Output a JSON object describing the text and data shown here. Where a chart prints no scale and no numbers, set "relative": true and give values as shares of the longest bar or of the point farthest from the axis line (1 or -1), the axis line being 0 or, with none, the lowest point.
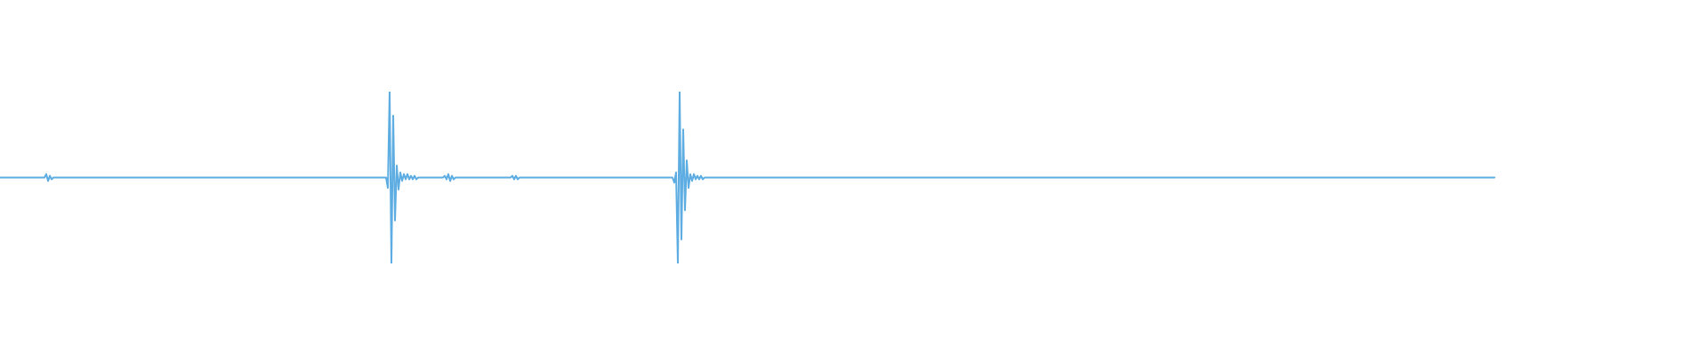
{
  "chart_data": {
    "type": "line",
    "relative": true,
    "categories": [
      null,
      null,
      null,
      null,
      null,
      null,
      null,
      null,
      null,
      null,
      null,
      null,
      null,
      null,
      null,
      null,
      null,
      null,
      null,
      null,
      null,
      null,
      null,
      null,
      null,
      null,
      null,
      null,
      null,
      null,
      null,
      null,
      null,
      null,
      null,
      null,
      null,
      null,
      null,
      null,
      null,
      null,
      null,
      null,
      null,
      null,
      null,
      null,
      null,
      null,
      null,
      null,
      null,
      null,
      null,
      null,
      null,
      null,
      null,
      null,
      null,
      null,
      null,
      null,
      null,
      null,
      null,
      null,
      null,
      null,
      null,
      null,
      null,
      null,
      null,
      null,
      null,
      null,
      null,
      null,
      null,
      null,
      null,
      null,
      null,
      null,
      null,
      null,
      null,
      null,
      null,
      null,
      null,
      null,
      null,
      null,
      null,
      null,
      null,
      null,
      null,
      null,
      null,
      null,
      null,
      null,
      null,
      null,
      null,
      null,
      null,
      null,
      null,
      null,
      null,
      null,
      null,
      null,
      null,
      null,
      null,
      null,
      null,
      null,
      null,
      null,
      null,
      null,
      null,
      null,
      null,
      null,
      null,
      null,
      null,
      null,
      null,
      null,
      null,
      null,
      null,
      null,
      null,
      null,
      null,
      null,
      null,
      null,
      null,
      null,
      null,
      null,
      null,
      null,
      null,
      null,
      null,
      null,
      null,
      null,
      null,
      null,
      null,
      null,
      null,
      null,
      null,
      null,
      null,
      null,
      null,
      null,
      null,
      null,
      null,
      null,
      null,
      null,
      null,
      null,
      null,
      null,
      null,
      null,
      null,
      null,
      null,
      null,
      null,
      null,
      null,
      null,
      null,
      null,
      null,
      null,
      null,
      null,
      null,
      null,
      null,
      null,
      null,
      null,
      null,
      null,
      null,
      null,
      null,
      null,
      null,
      null,
      null,
      null,
      null,
      null,
      null,
      null,
      null,
      null,
      null,
      null,
      null,
      null,
      null,
      null,
      null,
      null,
      null,
      null,
      null,
      null,
      null,
      null,
      null,
      null,
      null,
      null,
      null,
      null,
      null,
      null,
      null,
      null,
      null,
      null,
      null,
      null,
      null,
      null,
      null,
      null,
      null,
      null,
      null,
      null,
      null,
      null,
      null,
      null,
      null,
      null,
      null,
      null,
      null,
      null,
      null,
      null,
      null,
      null,
      null,
      null,
      null,
      null,
      null,
      null,
      null,
      null,
      null,
      null,
      null,
      null,
      null,
      null,
      null,
      null,
      null,
      null,
      null,
      null,
      null,
      null,
      null,
      null,
      null,
      null,
      null,
      null,
      null,
      null,
      null,
      null,
      null,
      null,
      null,
      null,
      null,
      null,
      null,
      null,
      null,
      null,
      null,
      null,
      null,
      null,
      null,
      null,
      null,
      null,
      null,
      null,
      null,
      null,
      null,
      null,
      null,
      null,
      null,
      null,
      null,
      null,
      null,
      null,
      null,
      null,
      null,
      null,
      null,
      null,
      null,
      null,
      null,
      null,
      null,
      null,
      null,
      null,
      null,
      null,
      null,
      null,
      null,
      null,
      null,
      null,
      null,
      null,
      null,
      null,
      null,
      null,
      null,
      null,
      null,
      null,
      null,
      null,
      null,
      null,
      null,
      null,
      null,
      null,
      null,
      null,
      null,
      null,
      null,
      null,
      null,
      null,
      null,
      null,
      null,
      null,
      null,
      null,
      null,
      null,
      null,
      null,
      null,
      null,
      null,
      null,
      null,
      null,
      null,
      null,
      null,
      null,
      null,
      null,
      null,
      null,
      null,
      null,
      null,
      null,
      null,
      null,
      null,
      null,
      null,
      null,
      null,
      null,
      null,
      null,
      null,
      null,
      null,
      null,
      null,
      null,
      null,
      null,
      null,
      null,
      null,
      null,
      null,
      null,
      null,
      null,
      null,
      null,
      null,
      null,
      null,
      null,
      null,
      null,
      null,
      null,
      null,
      null,
      null,
      null,
      null,
      null,
      null,
      null,
      null,
      null,
      null,
      null,
      null,
      null,
      null,
      null,
      null,
      null,
      null,
      null,
      null,
      null,
      null,
      null,
      null,
      null,
      null,
      null,
      null,
      null,
      null,
      null,
      null,
      null,
      null,
      null,
      null,
      null,
      null,
      null,
      null,
      null,
      null,
      null,
      null,
      null,
      null,
      null,
      null,
      null,
      null,
      null,
      null,
      null,
      null,
      null,
      null,
      null,
      null,
      null,
      null,
      null,
      null,
      null,
      null,
      null,
      null,
      null,
      null,
      null,
      null,
      null,
      null,
      null,
      null,
      null,
      null,
      null,
      null,
      null,
      null,
      null,
      null,
      null,
      null,
      null,
      null,
      null,
      null,
      null,
      null,
      null,
      null,
      null,
      null,
      null,
      null,
      null,
      null,
      null,
      null,
      null,
      null,
      null,
      null,
      null,
      null,
      null,
      null,
      null,
      null,
      null,
      null,
      null,
      null,
      null,
      null,
      null,
      null,
      null,
      null,
      null,
      null,
      null,
      null,
      null,
      null,
      null,
      null,
      null,
      null,
      null,
      null,
      null,
      null,
      null,
      null,
      null,
      null,
      null,
      null,
      null,
      null,
      null,
      null,
      null,
      null,
      null,
      null,
      null,
      null,
      null,
      null,
      null,
      null,
      null,
      null,
      null,
      null,
      null,
      null,
      null,
      null,
      null,
      null,
      null,
      null,
      null,
      null,
      null,
      null,
      null,
      null,
      null,
      null,
      null,
      null,
      null,
      null,
      null,
      null,
      null,
      null,
      null,
      null,
      null,
      null,
      null,
      null,
      null,
      null,
      null,
      null,
      null,
      null,
      null,
      null,
      null,
      null,
      null,
      null,
      null,
      null,
      null,
      null,
      null,
      null,
      null,
      null,
      null,
      null,
      null,
      null,
      null,
      null,
      null,
      null,
      null,
      null,
      null,
      null,
      null,
      null,
      null,
      null,
      null,
      null,
      null,
      null,
      null,
      null,
      null,
      null,
      null,
      null,
      null,
      null,
      null,
      null,
      null,
      null,
      null,
      null,
      null,
      null,
      null,
      null,
      null,
      null,
      null,
      null,
      null,
      null,
      null,
      null,
      null,
      null,
      null,
      null,
      null,
      null,
      null,
      null,
      null,
      null,
      null,
      null,
      null,
      null,
      null,
      null,
      null,
      null,
      null,
      null,
      null,
      null,
      null,
      null,
      null,
      null,
      null,
      null,
      null,
      null,
      null,
      null,
      null,
      null,
      null,
      null,
      null,
      null,
      null,
      null,
      null,
      null,
      null,
      null,
      null,
      null,
      null,
      null,
      null,
      null,
      null,
      null,
      null,
      null,
      null,
      null,
      null,
      null,
      null,
      null,
      null,
      null,
      null,
      null,
      null,
      null,
      null,
      null,
      null,
      null,
      null,
      null,
      null,
      null,
      null,
      null,
      null,
      null,
      null,
      null,
      null,
      null,
      null,
      null,
      null,
      null,
      null,
      null,
      null,
      null,
      null,
      null,
      null,
      null,
      null,
      null,
      null,
      null,
      null,
      null,
      null,
      null,
      null,
      null,
      null,
      null,
      null,
      null,
      null,
      null,
      null,
      null,
      null,
      null,
      null,
      null,
      null,
      null,
      null,
      null,
      null,
      null,
      null,
      null,
      null,
      null,
      null,
      null,
      null,
      null,
      null,
      null,
      null,
      null,
      null,
      null,
      null,
      null,
      null,
      null
    ],
    "series": [
      {
        "color": "#5dade2",
        "values": [
          0.5,
          0.5,
          0.5,
          0.5,
          0.5,
          0.5,
          0.5,
          0.5,
          0.5,
          0.5,
          0.5,
          0.5,
          0.5,
          0.5,
          0.5,
          0.5,
          0.5,
          0.5,
          0.5,
          0.5,
          0.5,
          0.5,
          0.5,
          0.5,
          0.5,
          0.5,
          0.52,
          0.48,
          0.51,
          0.49,
          0.5,
          0.5,
          0.5,
          0.5,
          0.5,
          0.5,
          0.5,
          0.5,
          0.5,
          0.5,
          0.5,
          0.5,
          0.5,
          0.5,
          0.5,
          0.5,
          0.5,
          0.5,
          0.5,
          0.5,
          0.5,
          0.5,
          0.5,
          0.5,
          0.5,
          0.5,
          0.5,
          0.5,
          0.5,
          0.5,
          0.5,
          0.5,
          0.5,
          0.5,
          0.5,
          0.5,
          0.5,
          0.5,
          0.5,
          0.5,
          0.5,
          0.5,
          0.5,
          0.5,
          0.5,
          0.5,
          0.5,
          0.5,
          0.5,
          0.5,
          0.5,
          0.5,
          0.5,
          0.5,
          0.5,
          0.5,
          0.5,
          0.5,
          0.5,
          0.5,
          0.5,
          0.5,
          0.5,
          0.5,
          0.5,
          0.5,
          0.5,
          0.5,
          0.5,
          0.5,
          0.5,
          0.5,
          0.5,
          0.5,
          0.5,
          0.5,
          0.5,
          0.5,
          0.5,
          0.5,
          0.5,
          0.5,
          0.5,
          0.5,
          0.5,
          0.5,
          0.5,
          0.5,
          0.5,
          0.5,
          0.5,
          0.5,
          0.5,
          0.5,
          0.5,
          0.5,
          0.5,
          0.5,
          0.5,
          0.5,
          0.5,
          0.5,
          0.5,
          0.5,
          0.5,
          0.5,
          0.5,
          0.5,
          0.5,
          0.5,
          0.5,
          0.5,
          0.5,
          0.5,
          0.5,
          0.5,
          0.5,
          0.5,
          0.5,
          0.5,
          0.5,
          0.5,
          0.5,
          0.5,
          0.5,
          0.5,
          0.5,
          0.5,
          0.5,
          0.5,
          0.5,
          0.5,
          0.5,
          0.5,
          0.5,
          0.5,
          0.5,
          0.5,
          0.5,
          0.5,
          0.5,
          0.5,
          0.5,
          0.5,
          0.5,
          0.5,
          0.5,
          0.5,
          0.5,
          0.5,
          0.5,
          0.5,
          0.5,
          0.5,
          0.5,
          0.5,
          0.5,
          0.5,
          0.5,
          0.5,
          0.5,
          0.5,
          0.5,
          0.5,
          0.5,
          0.5,
          0.5,
          0.5,
          0.5,
          0.5,
          0.5,
          0.5,
          0.5,
          0.5,
          0.5,
          0.5,
          0.5,
          0.5,
          0.5,
          0.5,
          0.5,
          0.5,
          0.5,
          0.5,
          0.5,
          0.5,
          0.5,
          0.5,
          0.44,
          1.0,
          0,
          0.86,
          0.25,
          0.57,
          0.43,
          0.53,
          0.48,
          0.52,
          0.49,
          0.52,
          0.49,
          0.51,
          0.49,
          0.51,
          0.49,
          0.5,
          0.5,
          0.5,
          0.5,
          0.5,
          0.5,
          0.5,
          0.5,
          0.5,
          0.5,
          0.5,
          0.5,
          0.5,
          0.5,
          0.5,
          0.51,
          0.49,
          0.52,
          0.48,
          0.51,
          0.49,
          0.5,
          0.5,
          0.5,
          0.5,
          0.5,
          0.5,
          0.5,
          0.5,
          0.5,
          0.5,
          0.5,
          0.5,
          0.5,
          0.5,
          0.5,
          0.5,
          0.5,
          0.5,
          0.5,
          0.5,
          0.5,
          0.5,
          0.5,
          0.5,
          0.5,
          0.5,
          0.5,
          0.5,
          0.5,
          0.5,
          0.5,
          0.5,
          0.51,
          0.49,
          0.51,
          0.49,
          0.5,
          0.5,
          0.5,
          0.5,
          0.5,
          0.5,
          0.5,
          0.5,
          0.5,
          0.5,
          0.5,
          0.5,
          0.5,
          0.5,
          0.5,
          0.5,
          0.5,
          0.5,
          0.5,
          0.5,
          0.5,
          0.5,
          0.5,
          0.5,
          0.5,
          0.5,
          0.5,
          0.5,
          0.5,
          0.5,
          0.5,
          0.5,
          0.5,
          0.5,
          0.5,
          0.5,
          0.5,
          0.5,
          0.5,
          0.5,
          0.5,
          0.5,
          0.5,
          0.5,
          0.5,
          0.5,
          0.5,
          0.5,
          0.5,
          0.5,
          0.5,
          0.5,
          0.5,
          0.5,
          0.5,
          0.5,
          0.5,
          0.5,
          0.5,
          0.5,
          0.5,
          0.5,
          0.5,
          0.5,
          0.5,
          0.5,
          0.5,
          0.5,
          0.5,
          0.5,
          0.5,
          0.5,
          0.5,
          0.5,
          0.5,
          0.5,
          0.5,
          0.5,
          0.5,
          0.5,
          0.5,
          0.5,
          0.5,
          0.5,
          0.5,
          0.5,
          0.5,
          0.47,
          0.53,
          0,
          1.0,
          0.14,
          0.78,
          0.31,
          0.6,
          0.44,
          0.52,
          0.48,
          0.52,
          0.49,
          0.51,
          0.49,
          0.51,
          0.49,
          0.5,
          0.5,
          0.5,
          0.5,
          0.5,
          0.5,
          0.5,
          0.5,
          0.5,
          0.5,
          0.5,
          0.5,
          0.5,
          0.5,
          0.5,
          0.5,
          0.5,
          0.5,
          0.5,
          0.5,
          0.5,
          0.5,
          0.5,
          0.5,
          0.5,
          0.5,
          0.5,
          0.5,
          0.5,
          0.5,
          0.5,
          0.5,
          0.5,
          0.5,
          0.5,
          0.5,
          0.5,
          0.5,
          0.5,
          0.5,
          0.5,
          0.5,
          0.5,
          0.5,
          0.5,
          0.5,
          0.5,
          0.5,
          0.5,
          0.5,
          0.5,
          0.5,
          0.5,
          0.5,
          0.5,
          0.5,
          0.5,
          0.5,
          0.5,
          0.5,
          0.5,
          0.5,
          0.5,
          0.5,
          0.5,
          0.5,
          0.5,
          0.5,
          0.5,
          0.5,
          0.5,
          0.5,
          0.5,
          0.5,
          0.5,
          0.5,
          0.5,
          0.5,
          0.5,
          0.5,
          0.5,
          0.5,
          0.5,
          0.5,
          0.5,
          0.5,
          0.5,
          0.5,
          0.5,
          0.5,
          0.5,
          0.5,
          0.5,
          0.5,
          0.5,
          0.5,
          0.5,
          0.5,
          0.5,
          0.5,
          0.5,
          0.5,
          0.5,
          0.5,
          0.5,
          0.5,
          0.5,
          0.5,
          0.5,
          0.5,
          0.5,
          0.5,
          0.5,
          0.5,
          0.5,
          0.5,
          0.5,
          0.5,
          0.5,
          0.5,
          0.5,
          0.5,
          0.5,
          0.5,
          0.5,
          0.5,
          0.5,
          0.5,
          0.5,
          0.5,
          0.5,
          0.5,
          0.5,
          0.5,
          0.5,
          0.5,
          0.5,
          0.5,
          0.5,
          0.5,
          0.5,
          0.5,
          0.5,
          0.5,
          0.5,
          0.5,
          0.5,
          0.5,
          0.5,
          0.5,
          0.5,
          0.5,
          0.5,
          0.5,
          0.5,
          0.5,
          0.5,
          0.5,
          0.5,
          0.5,
          0.5,
          0.5,
          0.5,
          0.5,
          0.5,
          0.5,
          0.5,
          0.5,
          0.5,
          0.5,
          0.5,
          0.5,
          0.5,
          0.5,
          0.5,
          0.5,
          0.5,
          0.5,
          0.5,
          0.5,
          0.5,
          0.5,
          0.5,
          0.5,
          0.5,
          0.5,
          0.5,
          0.5,
          0.5,
          0.5,
          0.5,
          0.5,
          0.5,
          0.5,
          0.5,
          0.5,
          0.5,
          0.5,
          0.5,
          0.5,
          0.5,
          0.5,
          0.5,
          0.5,
          0.5,
          0.5,
          0.5,
          0.5,
          0.5,
          0.5,
          0.5,
          0.5,
          0.5,
          0.5,
          0.5,
          0.5,
          0.5,
          0.5,
          0.5,
          0.5,
          0.5,
          0.5,
          0.5,
          0.5,
          0.5,
          0.5,
          0.5,
          0.5,
          0.5,
          0.5,
          0.5,
          0.5,
          0.5,
          0.5,
          0.5,
          0.5,
          0.5,
          0.5,
          0.5,
          0.5,
          0.5,
          0.5,
          0.5,
          0.5,
          0.5,
          0.5,
          0.5,
          0.5,
          0.5,
          0.5,
          0.5,
          0.5,
          0.5,
          0.5,
          0.5,
          0.5,
          0.5,
          0.5,
          0.5,
          0.5,
          0.5,
          0.5,
          0.5,
          0.5,
          0.5,
          0.5,
          0.5,
          0.5,
          0.5,
          0.5,
          0.5,
          0.5,
          0.5,
          0.5,
          0.5,
          0.5,
          0.5,
          0.5,
          0.5,
          0.5,
          0.5,
          0.5,
          0.5,
          0.5,
          0.5,
          0.5,
          0.5,
          0.5,
          0.5,
          0.5,
          0.5,
          0.5,
          0.5,
          0.5,
          0.5,
          0.5,
          0.5,
          0.5,
          0.5,
          0.5,
          0.5,
          0.5,
          0.5,
          0.5,
          0.5,
          0.5,
          0.5,
          0.5,
          0.5,
          0.5,
          0.5,
          0.5,
          0.5,
          0.5,
          0.5,
          0.5,
          0.5,
          0.5,
          0.5,
          0.5,
          0.5,
          0.5,
          0.5,
          0.5,
          0.5,
          0.5,
          0.5,
          0.5,
          0.5,
          0.5,
          0.5,
          0.5,
          0.5,
          0.5,
          0.5,
          0.5,
          0.5,
          0.5,
          0.5,
          0.5,
          0.5,
          0.5,
          0.5,
          0.5,
          0.5,
          0.5,
          0.5,
          0.5,
          0.5,
          0.5,
          0.5,
          0.5,
          0.5,
          0.5,
          0.5,
          0.5,
          0.5,
          0.5,
          0.5,
          0.5,
          0.5,
          0.5,
          0.5,
          0.5,
          0.5,
          0.5,
          0.5,
          0.5,
          0.5,
          0.5,
          0.5,
          0.5,
          0.5,
          0.5,
          0.5,
          0.5,
          0.5,
          0.5,
          0.5,
          0.5,
          0.5,
          0.5,
          0.5,
          0.5,
          0.5,
          0.5,
          0.5,
          0.5,
          0.5,
          0.5,
          0.5,
          0.5,
          0.5,
          0.5,
          0.5,
          0.5,
          0.5,
          0.5,
          0.5,
          0.5,
          0.5,
          0.5,
          0.5,
          0.5,
          0.5,
          0.5,
          0.5,
          0.5,
          0.5,
          0.5,
          0.5,
          0.5,
          0.5,
          0.5,
          0.5,
          0.5,
          0.5,
          0.5,
          0.5,
          0.5,
          0.5,
          0.5,
          0.5,
          0.5,
          0.5,
          0.5,
          0.5,
          0.5,
          0.5,
          0.5,
          0.5,
          0.5,
          0.5,
          0.5,
          0.5,
          0.5,
          0.5,
          0.5,
          0.5,
          0.5,
          0.5,
          0.5,
          0.5,
          0.5,
          0.5
        ]
      }
    ]
  }
}
